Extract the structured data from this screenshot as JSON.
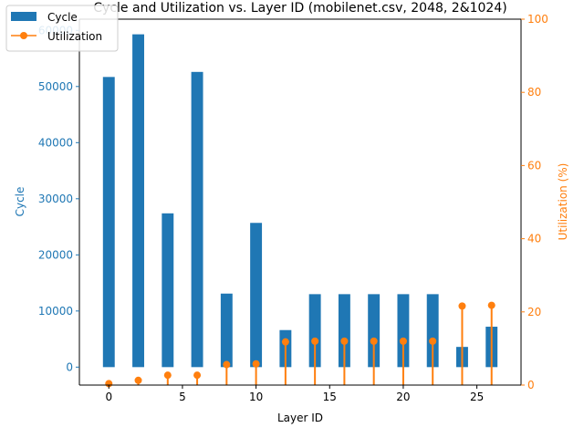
{
  "chart_data": {
    "type": "bar+line",
    "title": "Cycle and Utilization vs. Layer ID (mobilenet.csv, 2048, 2&1024)",
    "xlabel": "Layer ID",
    "ylabel_left": "Cycle",
    "ylabel_right": "Utilization (%)",
    "xlim": [
      -2,
      28
    ],
    "xticks": [
      0,
      5,
      10,
      15,
      20,
      25
    ],
    "ylim_left": [
      -3200,
      62000
    ],
    "yticks_left": [
      0,
      10000,
      20000,
      30000,
      40000,
      50000,
      60000
    ],
    "ylim_right": [
      0,
      100
    ],
    "yticks_right": [
      0,
      20,
      40,
      60,
      80,
      100
    ],
    "legend_position": "top-left",
    "colors": {
      "cycle": "#1f77b4",
      "utilization": "#ff7f0e"
    },
    "series": [
      {
        "name": "Cycle",
        "type": "bar",
        "x": [
          0,
          2,
          4,
          6,
          8,
          10,
          12,
          14,
          16,
          18,
          20,
          22,
          24,
          26
        ],
        "values": [
          51700,
          59300,
          27400,
          52600,
          13100,
          25700,
          6600,
          13000,
          13000,
          13000,
          13000,
          13000,
          3600,
          7200
        ]
      },
      {
        "name": "Utilization",
        "type": "line",
        "x": [
          0,
          2,
          4,
          6,
          8,
          10,
          12,
          14,
          16,
          18,
          20,
          22,
          24,
          26
        ],
        "values": [
          0.4,
          1.3,
          2.7,
          2.7,
          5.6,
          5.8,
          11.8,
          12.0,
          12.0,
          12.0,
          12.0,
          12.0,
          21.6,
          21.8
        ]
      }
    ]
  }
}
